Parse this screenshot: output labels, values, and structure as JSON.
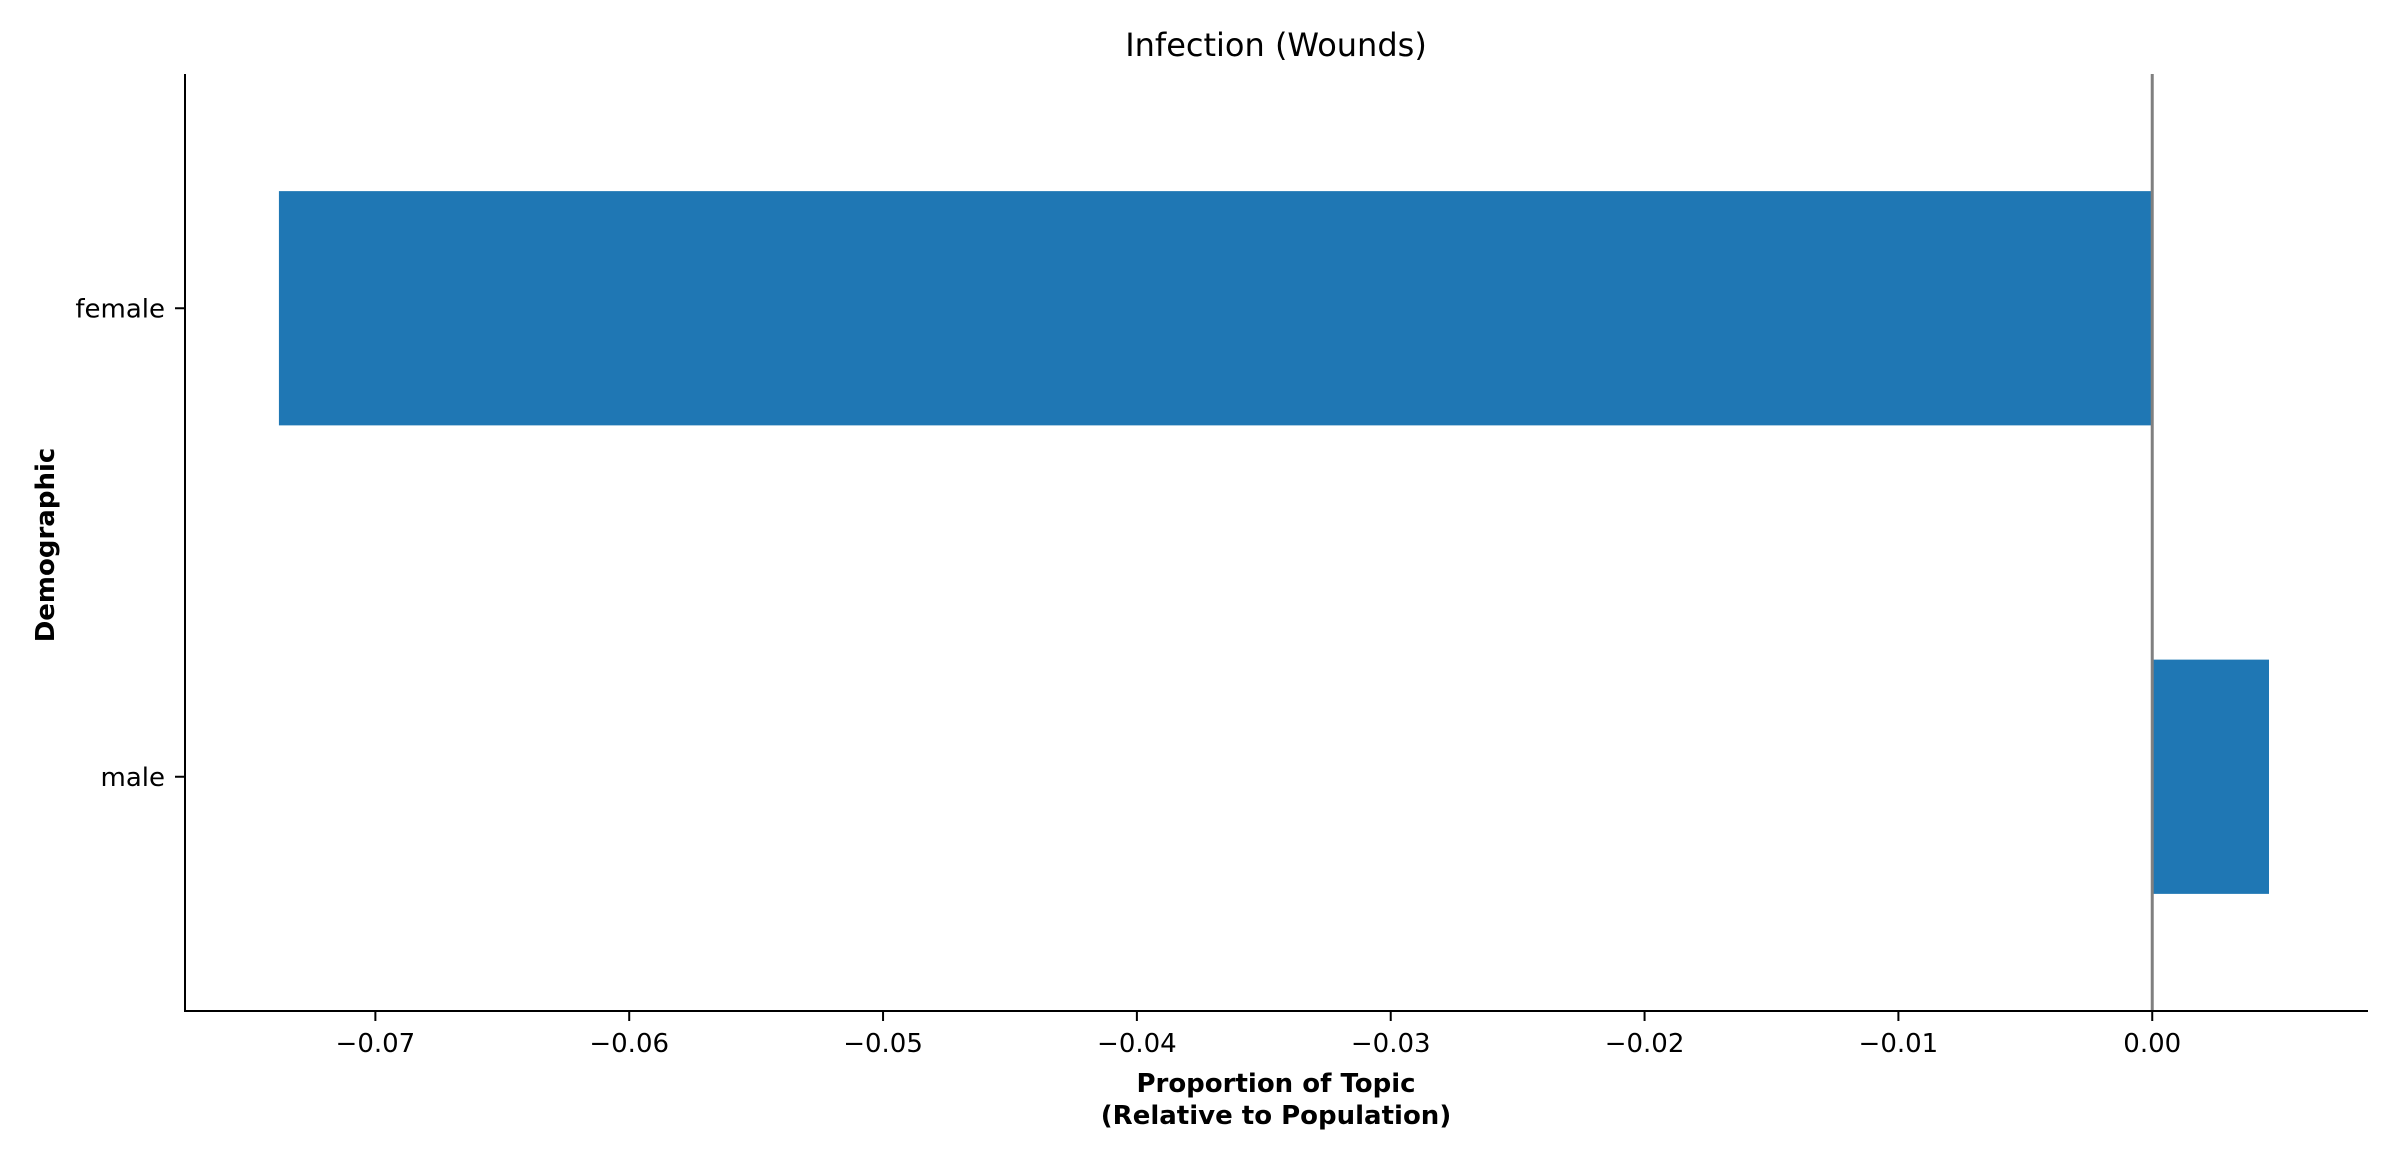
{
  "chart_data": {
    "type": "bar",
    "orientation": "horizontal",
    "title": "Infection (Wounds)",
    "xlabel_lines": [
      "Proportion of Topic",
      "(Relative to Population)"
    ],
    "ylabel": "Demographic",
    "categories": [
      "female",
      "male"
    ],
    "values": [
      -0.0738,
      0.0046
    ],
    "xlim": [
      -0.0775,
      0.0085
    ],
    "xticks": [
      -0.07,
      -0.06,
      -0.05,
      -0.04,
      -0.03,
      -0.02,
      -0.01,
      0.0
    ],
    "xtick_labels": [
      "−0.07",
      "−0.06",
      "−0.05",
      "−0.04",
      "−0.03",
      "−0.02",
      "−0.01",
      "0.00"
    ],
    "reference_line": 0.0,
    "grid": false,
    "legend": "none",
    "bar_color": "#1f77b4",
    "reference_line_color": "#808080",
    "axis_color": "#000000"
  }
}
